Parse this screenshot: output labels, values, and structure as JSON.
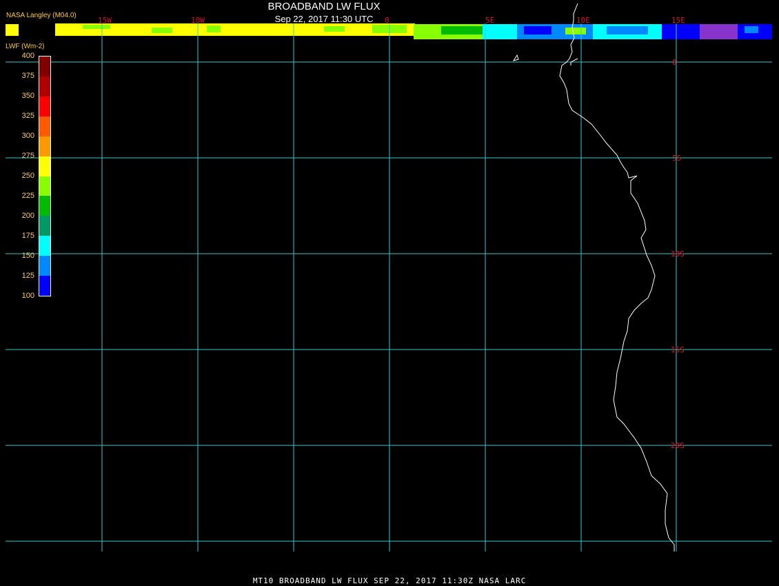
{
  "header": {
    "title": "BROADBAND LW FLUX",
    "datetime": "Sep 22, 2017 11:30 UTC",
    "brand": "NASA Langley (M04.0)"
  },
  "legend": {
    "title": "LWF (Wm-2)",
    "ticks": [
      "400",
      "375",
      "350",
      "325",
      "300",
      "275",
      "250",
      "225",
      "200",
      "175",
      "150",
      "125",
      "100"
    ],
    "colors": [
      "#800000",
      "#b00000",
      "#ff0000",
      "#ff5a00",
      "#ff9900",
      "#ffff00",
      "#88ff00",
      "#00bb00",
      "#009966",
      "#00ffff",
      "#0088ff",
      "#0000ff",
      "#8833cc"
    ]
  },
  "map": {
    "lon_labels": [
      "15W",
      "10W",
      "0",
      "5E",
      "10E",
      "15E"
    ],
    "lat_labels": [
      "0",
      "5S",
      "10S",
      "15S",
      "20S"
    ],
    "grid_color": "#33cccc",
    "label_color": "#e0102a",
    "coast_color": "#ffffff"
  },
  "footer": "MT10  BROADBAND LW FLUX   SEP 22, 2017 11:30Z   NASA LARC"
}
